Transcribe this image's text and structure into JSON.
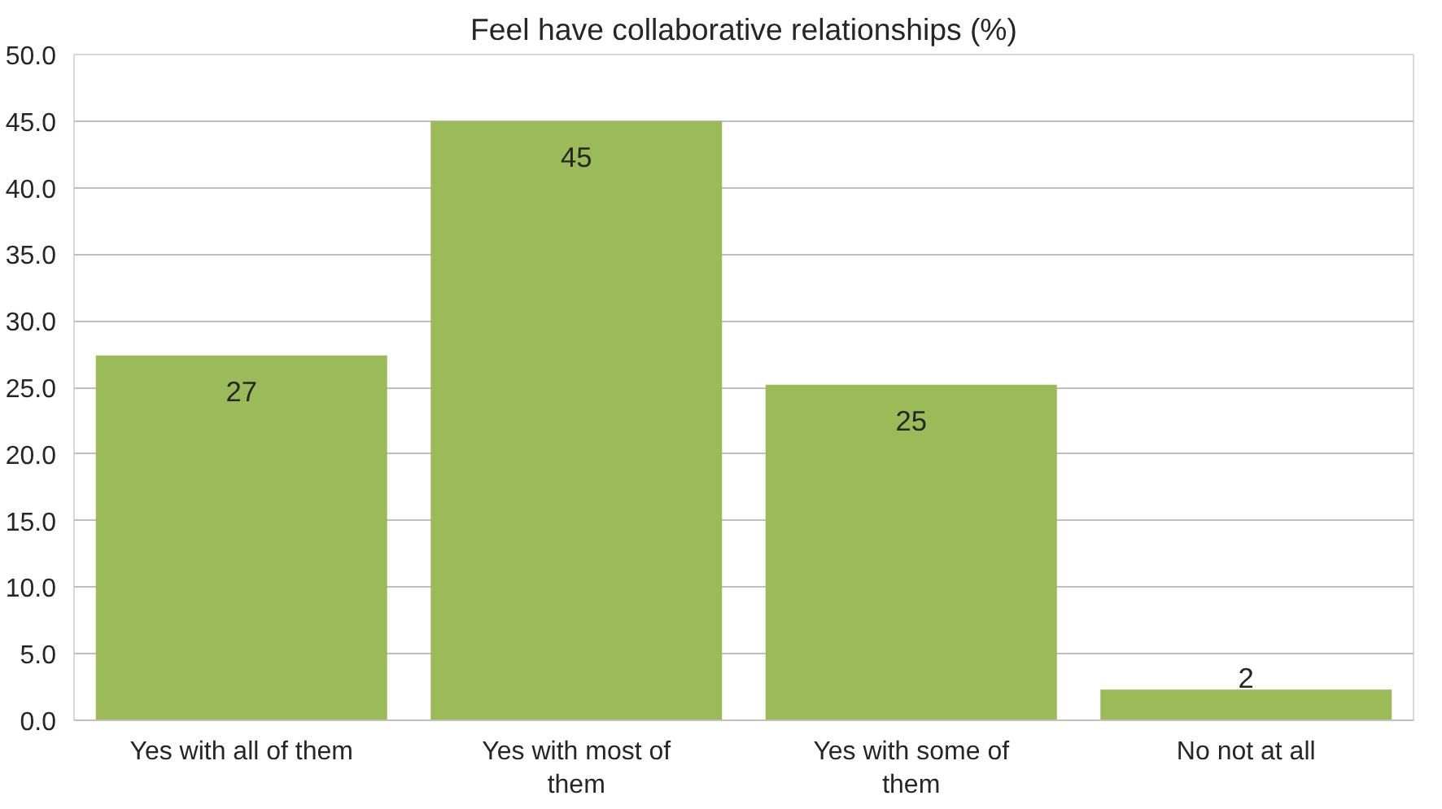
{
  "chart_data": {
    "type": "bar",
    "title": "Feel have collaborative relationships (%)",
    "categories": [
      "Yes with all of them",
      "Yes with most of them",
      "Yes with some of them",
      "No not at all"
    ],
    "values": [
      27.4,
      45.0,
      25.2,
      2.3
    ],
    "value_labels": [
      "27",
      "45",
      "25",
      "2"
    ],
    "color": "#9bbb59",
    "ylim": [
      0,
      50
    ],
    "yticks": [
      {
        "value": 0,
        "label": "0.0"
      },
      {
        "value": 5,
        "label": "5.0"
      },
      {
        "value": 10,
        "label": "10.0"
      },
      {
        "value": 15,
        "label": "15.0"
      },
      {
        "value": 20,
        "label": "20.0"
      },
      {
        "value": 25,
        "label": "25.0"
      },
      {
        "value": 30,
        "label": "30.0"
      },
      {
        "value": 35,
        "label": "35.0"
      },
      {
        "value": 40,
        "label": "40.0"
      },
      {
        "value": 45,
        "label": "45.0"
      },
      {
        "value": 50,
        "label": "50.0"
      }
    ],
    "grid": "y"
  }
}
